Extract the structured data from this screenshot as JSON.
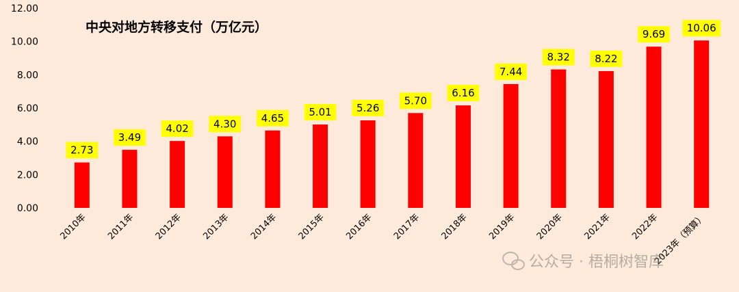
{
  "chart_data": {
    "type": "bar",
    "title": "中央对地方转移支付（万亿元）",
    "categories": [
      "2010年",
      "2011年",
      "2012年",
      "2013年",
      "2014年",
      "2015年",
      "2016年",
      "2017年",
      "2018年",
      "2019年",
      "2020年",
      "2021年",
      "2022年",
      "2023年（预算）"
    ],
    "values": [
      2.73,
      3.49,
      4.02,
      4.3,
      4.65,
      5.01,
      5.26,
      5.7,
      6.16,
      7.44,
      8.32,
      8.22,
      9.69,
      10.06
    ],
    "data_labels": [
      "2.73",
      "3.49",
      "4.02",
      "4.30",
      "4.65",
      "5.01",
      "5.26",
      "5.70",
      "6.16",
      "7.44",
      "8.32",
      "8.22",
      "9.69",
      "10.06"
    ],
    "ylim": [
      0,
      12
    ],
    "yticks": [
      "0.00",
      "2.00",
      "4.00",
      "6.00",
      "8.00",
      "10.00",
      "12.00"
    ],
    "grid": false,
    "legend": "none",
    "bar_color": "#ff0000",
    "label_bg_color": "#ffff00",
    "background_color": "#fdeada"
  },
  "watermark": {
    "text": "公众号 · 梧桐树智库",
    "icon": "wechat-icon"
  }
}
